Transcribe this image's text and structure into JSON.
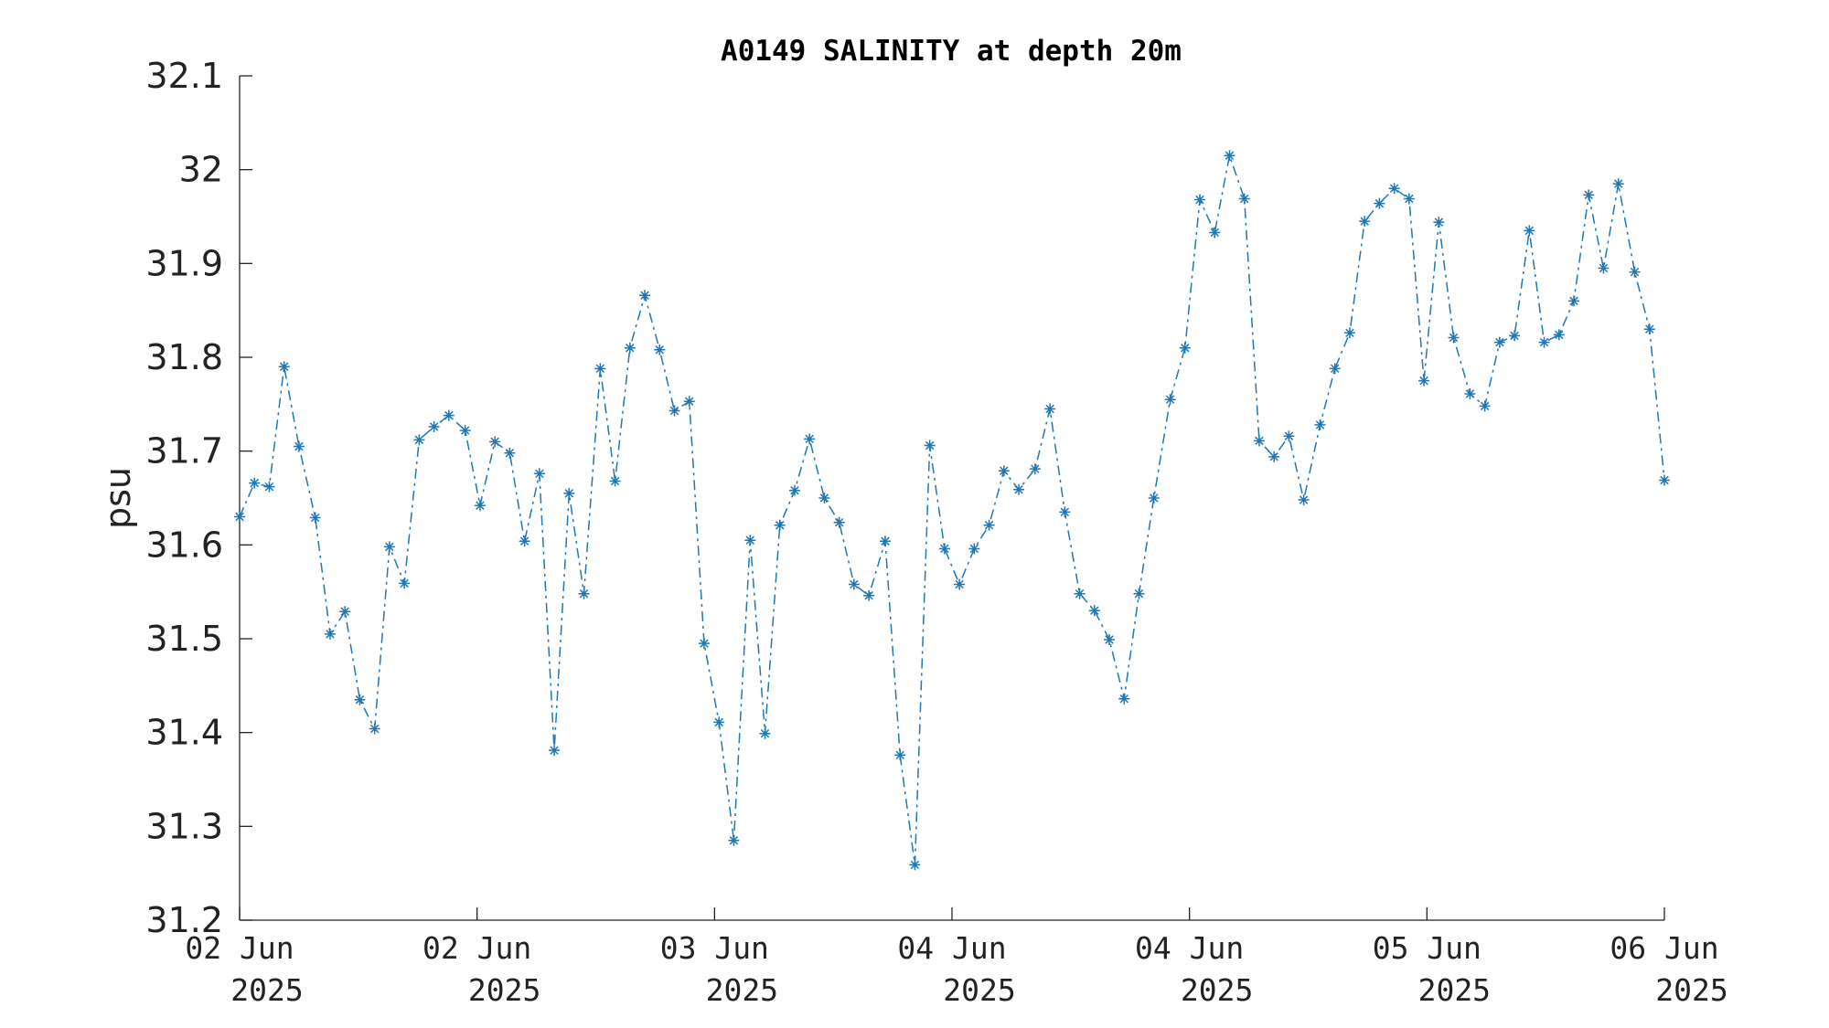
{
  "chart_data": {
    "type": "line",
    "title": "A0149 SALINITY at depth 20m",
    "ylabel": "psu",
    "xlim": [
      0,
      96
    ],
    "xticks": [
      {
        "value": 0,
        "label": [
          "02 Jun",
          "2025"
        ]
      },
      {
        "value": 16,
        "label": [
          "02 Jun",
          "2025"
        ]
      },
      {
        "value": 32,
        "label": [
          "03 Jun",
          "2025"
        ]
      },
      {
        "value": 48,
        "label": [
          "04 Jun",
          "2025"
        ]
      },
      {
        "value": 64,
        "label": [
          "04 Jun",
          "2025"
        ]
      },
      {
        "value": 80,
        "label": [
          "05 Jun",
          "2025"
        ]
      },
      {
        "value": 96,
        "label": [
          "06 Jun",
          "2025"
        ]
      }
    ],
    "ylim": [
      31.2,
      32.1
    ],
    "yticks": [
      31.2,
      31.3,
      31.4,
      31.5,
      31.6,
      31.7,
      31.8,
      31.9,
      32,
      32.1
    ],
    "x": [
      0,
      1.0,
      2.0,
      3.0,
      4.0,
      5.1,
      6.1,
      7.1,
      8.1,
      9.1,
      10.1,
      11.1,
      12.1,
      13.1,
      14.1,
      15.2,
      16.2,
      17.2,
      18.2,
      19.2,
      20.2,
      21.2,
      22.2,
      23.2,
      24.3,
      25.3,
      26.3,
      27.3,
      28.3,
      29.3,
      30.3,
      31.3,
      32.3,
      33.3,
      34.4,
      35.4,
      36.4,
      37.4,
      38.4,
      39.4,
      40.4,
      41.4,
      42.4,
      43.5,
      44.5,
      45.5,
      46.5,
      47.5,
      48.5,
      49.5,
      50.5,
      51.5,
      52.5,
      53.6,
      54.6,
      55.6,
      56.6,
      57.6,
      58.6,
      59.6,
      60.6,
      61.6,
      62.7,
      63.7,
      64.7,
      65.7,
      66.7,
      67.7,
      68.7,
      69.7,
      70.7,
      71.7,
      72.8,
      73.8,
      74.8,
      75.8,
      76.8,
      77.8,
      78.8,
      79.8,
      80.8,
      81.8,
      82.9,
      83.9,
      84.9,
      85.9,
      86.9,
      87.9,
      88.9,
      89.9,
      90.9,
      91.9,
      92.9,
      94.0,
      95.0,
      96.0
    ],
    "series": [
      {
        "name": "psu",
        "color": "#1f77b4",
        "values": [
          31.63,
          31.666,
          31.662,
          31.79,
          31.705,
          31.629,
          31.505,
          31.529,
          31.435,
          31.404,
          31.598,
          31.559,
          31.712,
          31.726,
          31.738,
          31.722,
          31.642,
          31.71,
          31.698,
          31.604,
          31.676,
          31.381,
          31.655,
          31.548,
          31.788,
          31.668,
          31.81,
          31.866,
          31.808,
          31.743,
          31.753,
          31.495,
          31.411,
          31.285,
          31.605,
          31.399,
          31.621,
          31.658,
          31.713,
          31.65,
          31.624,
          31.558,
          31.546,
          31.604,
          31.376,
          31.259,
          31.706,
          31.596,
          31.558,
          31.596,
          31.621,
          31.679,
          31.659,
          31.681,
          31.745,
          31.635,
          31.548,
          31.53,
          31.499,
          31.436,
          31.548,
          31.65,
          31.755,
          31.81,
          31.968,
          31.933,
          32.015,
          31.969,
          31.711,
          31.694,
          31.716,
          31.648,
          31.728,
          31.788,
          31.826,
          31.945,
          31.964,
          31.98,
          31.969,
          31.775,
          31.944,
          31.821,
          31.761,
          31.748,
          31.816,
          31.823,
          31.935,
          31.816,
          31.824,
          31.86,
          31.973,
          31.895,
          31.985,
          31.891,
          31.83,
          31.669
        ]
      }
    ]
  }
}
